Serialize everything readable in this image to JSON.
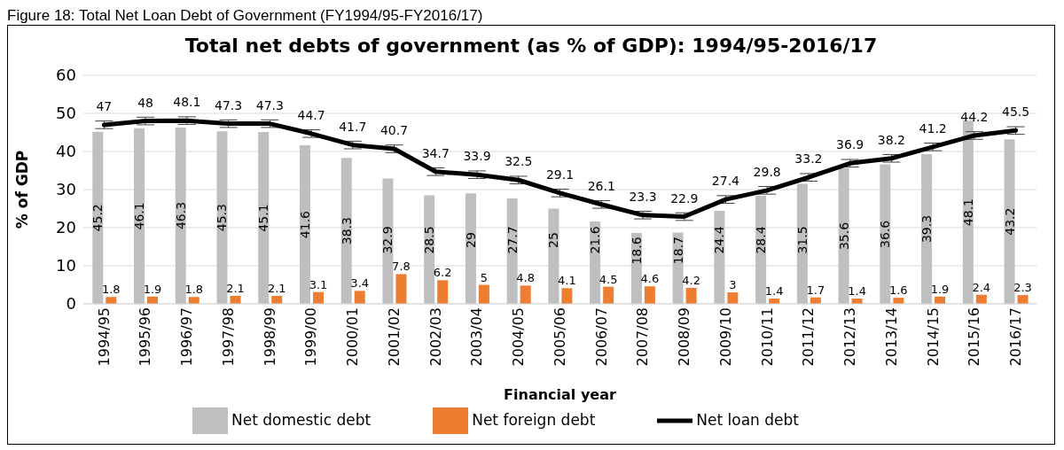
{
  "chart_data": {
    "type": "bar",
    "title": "Total net debts of government (as % of GDP): 1994/95-2016/17",
    "xlabel": "Financial year",
    "ylabel": "% of GDP",
    "annotations": [
      "Figure 18: Total Net Loan Debt of Government (FY1994/95-FY2016/17)"
    ],
    "categories": [
      "1994/95",
      "1995/96",
      "1996/97",
      "1997/98",
      "1998/99",
      "1999/00",
      "2000/01",
      "2001/02",
      "2002/03",
      "2003/04",
      "2004/05",
      "2005/06",
      "2006/07",
      "2007/08",
      "2008/09",
      "2009/10",
      "2010/11",
      "2011/12",
      "2012/13",
      "2013/14",
      "2014/15",
      "2015/16",
      "2016/17"
    ],
    "series": [
      {
        "name": "Net domestic debt",
        "color": "#bfbfbf",
        "values": [
          45.2,
          46.1,
          46.3,
          45.3,
          45.1,
          41.6,
          38.3,
          32.9,
          28.5,
          29,
          27.7,
          25,
          21.6,
          18.6,
          18.7,
          24.4,
          28.4,
          31.5,
          35.6,
          36.6,
          39.3,
          48.1,
          43.2
        ]
      },
      {
        "name": "Net foreign debt",
        "color": "#ed7d31",
        "values": [
          1.8,
          1.9,
          1.8,
          2.1,
          2.1,
          3.1,
          3.4,
          7.8,
          6.2,
          5,
          4.8,
          4.1,
          4.5,
          4.6,
          4.2,
          3,
          1.4,
          1.7,
          1.4,
          1.6,
          1.9,
          2.4,
          2.3
        ]
      },
      {
        "name": "Net loan debt",
        "type": "line",
        "color": "#000000",
        "values": [
          47,
          48,
          48.1,
          47.3,
          47.3,
          44.7,
          41.7,
          40.7,
          34.7,
          33.9,
          32.5,
          29.1,
          26.1,
          23.3,
          22.9,
          27.4,
          29.8,
          33.2,
          36.9,
          38.2,
          41.2,
          44.2,
          45.5
        ],
        "errors": [
          1,
          1,
          1,
          1,
          1,
          1,
          1,
          1,
          1,
          1,
          1,
          1,
          1,
          1,
          1,
          1,
          1,
          1,
          1,
          1,
          1,
          1,
          1
        ]
      }
    ],
    "ylim": [
      0,
      60
    ],
    "yticks": [
      0,
      10,
      20,
      30,
      40,
      50,
      60
    ],
    "grid": "y",
    "legend": "bottom",
    "data_labels": true,
    "marker": "none",
    "line_style": "solid"
  }
}
